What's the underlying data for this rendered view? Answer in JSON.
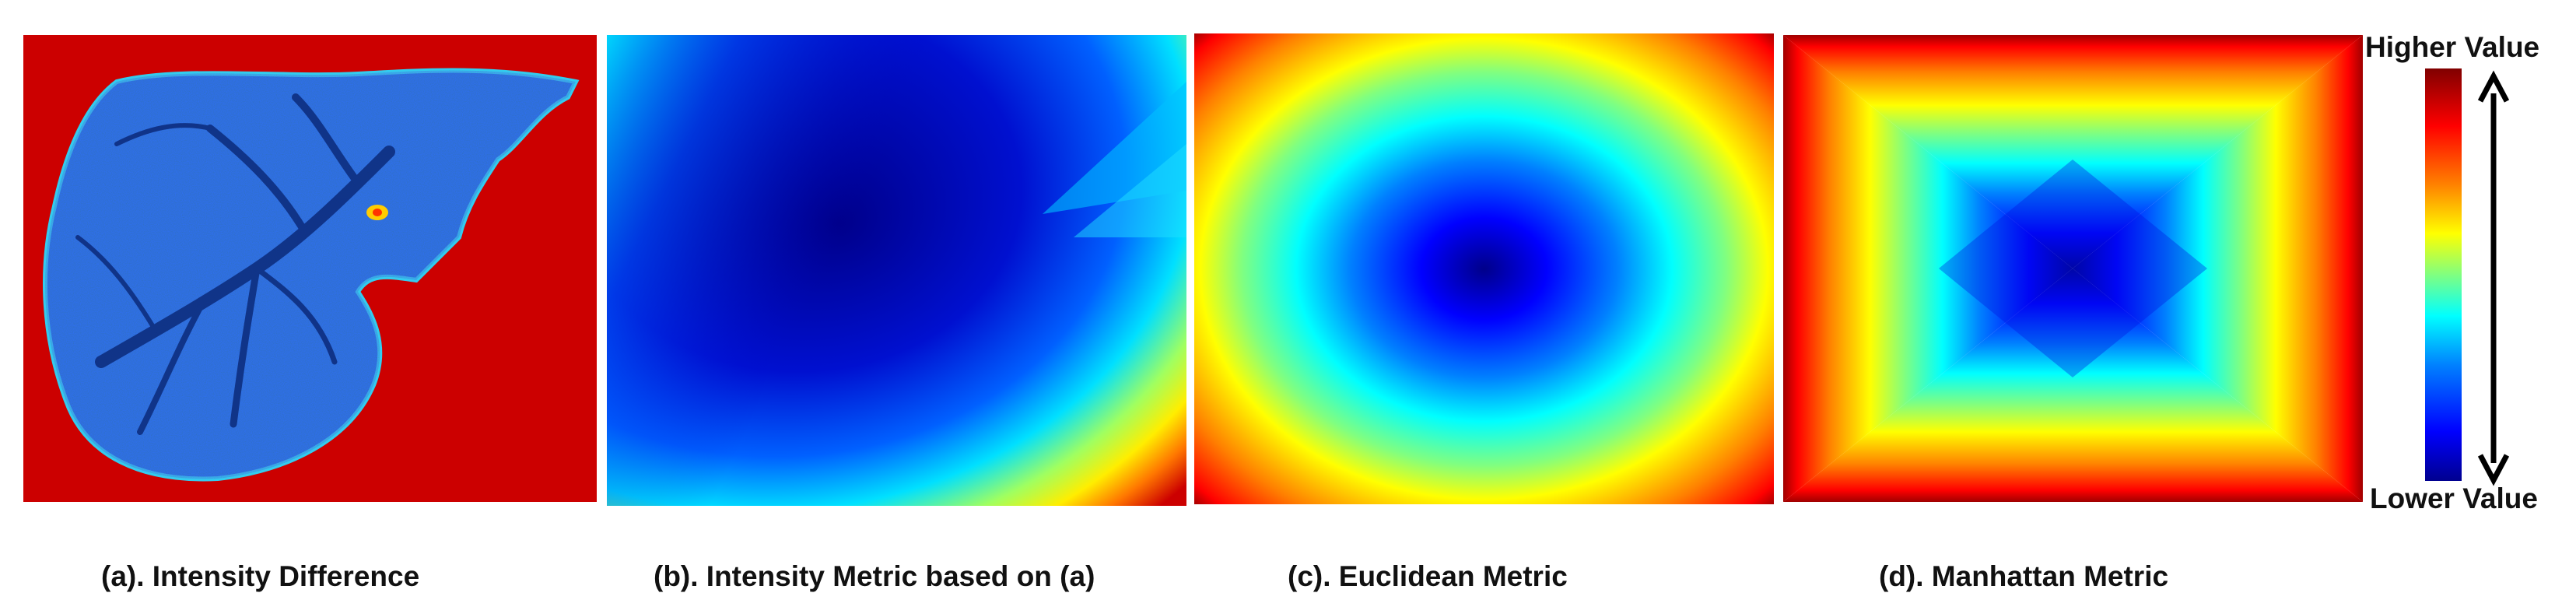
{
  "panels": [
    {
      "id": "a",
      "caption": "(a). Intensity Difference"
    },
    {
      "id": "b",
      "caption": "(b). Intensity Metric based on (a)"
    },
    {
      "id": "c",
      "caption": "(c). Euclidean Metric"
    },
    {
      "id": "d",
      "caption": "(d). Manhattan Metric"
    }
  ],
  "colorbar": {
    "higher_label": "Higher Value",
    "lower_label": "Lower Value",
    "colors": [
      "#00008f",
      "#0000ff",
      "#0080ff",
      "#00ffff",
      "#80ff80",
      "#ffff00",
      "#ff8000",
      "#ff0000",
      "#800000"
    ]
  }
}
